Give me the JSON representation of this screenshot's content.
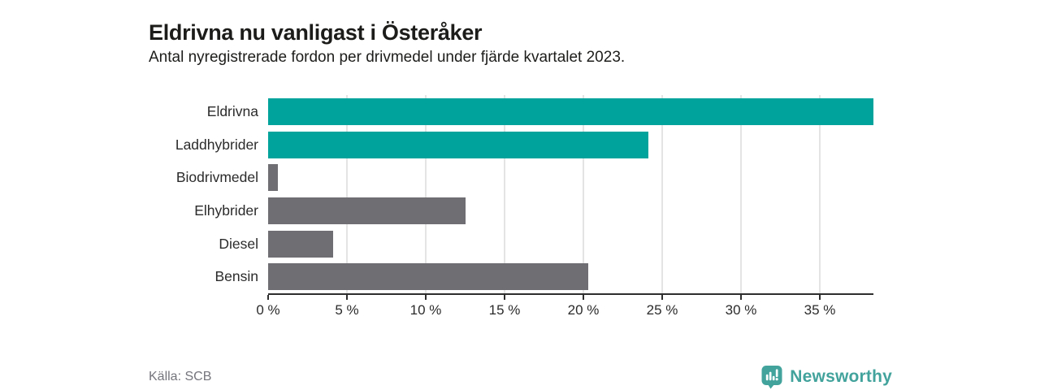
{
  "header": {
    "title": "Eldrivna nu vanligast i Österåker",
    "subtitle": "Antal nyregistrerade fordon per drivmedel under fjärde kvartalet 2023."
  },
  "chart_data": {
    "type": "bar",
    "orientation": "horizontal",
    "categories": [
      "Eldrivna",
      "Laddhybrider",
      "Biodrivmedel",
      "Elhybrider",
      "Diesel",
      "Bensin"
    ],
    "values": [
      38.4,
      24.1,
      0.6,
      12.5,
      4.1,
      20.3
    ],
    "unit": "%",
    "bar_colors": [
      "#00a39b",
      "#00a39b",
      "#6e6e73",
      "#6e6e73",
      "#6e6e73",
      "#6e6e73"
    ],
    "xlim": [
      0,
      38.4
    ],
    "x_ticks": [
      0,
      5,
      10,
      15,
      20,
      25,
      30,
      35
    ],
    "x_tick_labels": [
      "0 %",
      "5 %",
      "10 %",
      "15 %",
      "20 %",
      "25 %",
      "30 %",
      "35 %"
    ],
    "grid": "vertical-gridlines-at-ticks-except-zero",
    "legend": "none",
    "title": "Eldrivna nu vanligast i Österåker",
    "xlabel": "",
    "ylabel": ""
  },
  "footer": {
    "source": "Källa: SCB",
    "brand": "Newsworthy"
  },
  "colors": {
    "teal": "#00a39b",
    "gray": "#6e6e73",
    "brand_teal": "#42a29c",
    "gridline": "#e4e4e4",
    "axis": "#2e2e2e",
    "text_dark": "#1d1d1b",
    "text_muted": "#74747c"
  }
}
